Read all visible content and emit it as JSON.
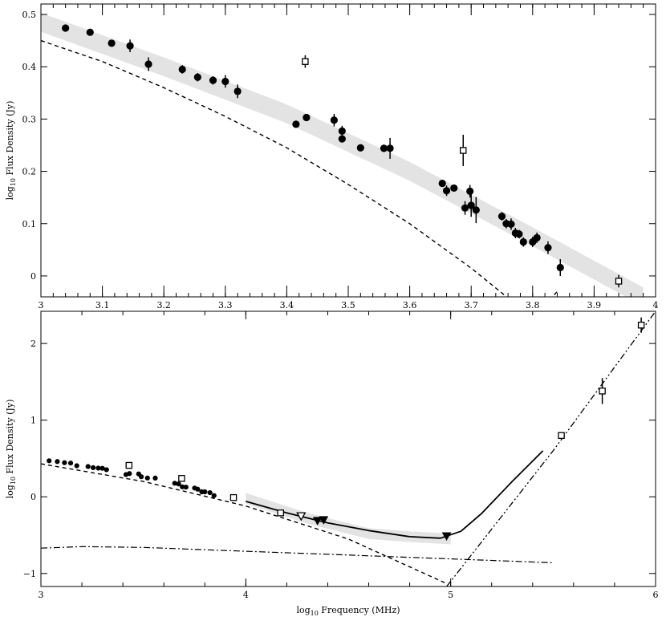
{
  "chart_data": [
    {
      "type": "scatter",
      "xlabel": "",
      "ylabel": "log10 Flux Density (Jy)",
      "ylabel_main": "log",
      "ylabel_sub": "10",
      "ylabel_rest": " Flux Density (Jy)",
      "xlim": [
        3.0,
        4.0
      ],
      "ylim": [
        -0.04,
        0.52
      ],
      "xticks": [
        3,
        3.1,
        3.2,
        3.3,
        3.4,
        3.5,
        3.6,
        3.7,
        3.8,
        3.9,
        4
      ],
      "xtick_labels": [
        "3",
        "3.1",
        "3.2",
        "3.3",
        "3.4",
        "3.5",
        "3.6",
        "3.7",
        "3.8",
        "3.9",
        "4"
      ],
      "yticks": [
        0,
        0.1,
        0.2,
        0.3,
        0.4,
        0.5
      ],
      "ytick_labels": [
        "0",
        "0.1",
        "0.2",
        "0.3",
        "0.4",
        "0.5"
      ],
      "series": [
        {
          "marker": "filled-circle",
          "points": [
            {
              "x": 3.04,
              "y": 0.474,
              "err": 0.0
            },
            {
              "x": 3.08,
              "y": 0.466,
              "err": 0.0
            },
            {
              "x": 3.115,
              "y": 0.445,
              "err": 0.0
            },
            {
              "x": 3.145,
              "y": 0.44,
              "err": 0.012
            },
            {
              "x": 3.175,
              "y": 0.405,
              "err": 0.013
            },
            {
              "x": 3.23,
              "y": 0.395,
              "err": 0.008
            },
            {
              "x": 3.255,
              "y": 0.38,
              "err": 0.008
            },
            {
              "x": 3.28,
              "y": 0.374,
              "err": 0.008
            },
            {
              "x": 3.3,
              "y": 0.372,
              "err": 0.012
            },
            {
              "x": 3.32,
              "y": 0.353,
              "err": 0.013
            },
            {
              "x": 3.415,
              "y": 0.29,
              "err": 0.0
            },
            {
              "x": 3.432,
              "y": 0.303,
              "err": 0.0
            },
            {
              "x": 3.477,
              "y": 0.298,
              "err": 0.012
            },
            {
              "x": 3.49,
              "y": 0.277,
              "err": 0.01
            },
            {
              "x": 3.49,
              "y": 0.262,
              "err": 0.0
            },
            {
              "x": 3.52,
              "y": 0.245,
              "err": 0.0
            },
            {
              "x": 3.558,
              "y": 0.244,
              "err": 0.007
            },
            {
              "x": 3.568,
              "y": 0.244,
              "err": 0.02
            },
            {
              "x": 3.653,
              "y": 0.177,
              "err": 0.0
            },
            {
              "x": 3.66,
              "y": 0.163,
              "err": 0.01
            },
            {
              "x": 3.672,
              "y": 0.168,
              "err": 0.006
            },
            {
              "x": 3.69,
              "y": 0.13,
              "err": 0.013
            },
            {
              "x": 3.698,
              "y": 0.162,
              "err": 0.012
            },
            {
              "x": 3.7,
              "y": 0.135,
              "err": 0.022
            },
            {
              "x": 3.708,
              "y": 0.126,
              "err": 0.025
            },
            {
              "x": 3.75,
              "y": 0.114,
              "err": 0.008
            },
            {
              "x": 3.757,
              "y": 0.1,
              "err": 0.009
            },
            {
              "x": 3.765,
              "y": 0.099,
              "err": 0.011
            },
            {
              "x": 3.772,
              "y": 0.082,
              "err": 0.01
            },
            {
              "x": 3.778,
              "y": 0.08,
              "err": 0.008
            },
            {
              "x": 3.785,
              "y": 0.065,
              "err": 0.009
            },
            {
              "x": 3.8,
              "y": 0.065,
              "err": 0.01
            },
            {
              "x": 3.807,
              "y": 0.073,
              "err": 0.01
            },
            {
              "x": 3.825,
              "y": 0.054,
              "err": 0.012
            },
            {
              "x": 3.845,
              "y": 0.016,
              "err": 0.016
            }
          ]
        },
        {
          "marker": "open-square",
          "points": [
            {
              "x": 3.43,
              "y": 0.41,
              "err": 0.012
            },
            {
              "x": 3.687,
              "y": 0.24,
              "err": 0.03
            },
            {
              "x": 3.94,
              "y": -0.01,
              "err": 0.012
            }
          ]
        }
      ],
      "band": {
        "x": [
          3.0,
          3.2,
          3.4,
          3.6,
          3.8,
          3.98
        ],
        "y": [
          0.485,
          0.4,
          0.31,
          0.2,
          0.075,
          -0.04
        ],
        "halfwidth": 0.018
      },
      "dashed_model": {
        "x": [
          3.0,
          3.1,
          3.2,
          3.3,
          3.4,
          3.5,
          3.6,
          3.7,
          3.8,
          3.84
        ],
        "y": [
          0.45,
          0.41,
          0.36,
          0.305,
          0.245,
          0.175,
          0.1,
          0.015,
          -0.08,
          -0.03
        ]
      }
    },
    {
      "type": "scatter",
      "xlabel": "log10 Frequency (MHz)",
      "xlabel_main": "log",
      "xlabel_sub": "10",
      "xlabel_rest": " Frequency (MHz)",
      "ylabel": "log10 Flux Density (Jy)",
      "ylabel_main": "log",
      "ylabel_sub": "10",
      "ylabel_rest": " Flux Density (Jy)",
      "xlim": [
        3.0,
        6.0
      ],
      "ylim": [
        -1.17,
        2.42
      ],
      "xticks": [
        3,
        4,
        5,
        6
      ],
      "xtick_labels": [
        "3",
        "4",
        "5",
        "6"
      ],
      "yticks": [
        -1,
        0,
        1,
        2
      ],
      "ytick_labels": [
        "−1",
        "0",
        "1",
        "2"
      ],
      "series": [
        {
          "marker": "filled-circle-small",
          "points": [
            {
              "x": 3.04,
              "y": 0.47
            },
            {
              "x": 3.08,
              "y": 0.46
            },
            {
              "x": 3.115,
              "y": 0.445
            },
            {
              "x": 3.145,
              "y": 0.44
            },
            {
              "x": 3.175,
              "y": 0.405
            },
            {
              "x": 3.23,
              "y": 0.395
            },
            {
              "x": 3.255,
              "y": 0.38
            },
            {
              "x": 3.28,
              "y": 0.374
            },
            {
              "x": 3.3,
              "y": 0.372
            },
            {
              "x": 3.32,
              "y": 0.353
            },
            {
              "x": 3.415,
              "y": 0.29
            },
            {
              "x": 3.432,
              "y": 0.303
            },
            {
              "x": 3.477,
              "y": 0.298
            },
            {
              "x": 3.49,
              "y": 0.262
            },
            {
              "x": 3.52,
              "y": 0.245
            },
            {
              "x": 3.558,
              "y": 0.244
            },
            {
              "x": 3.653,
              "y": 0.177
            },
            {
              "x": 3.672,
              "y": 0.168
            },
            {
              "x": 3.69,
              "y": 0.13
            },
            {
              "x": 3.708,
              "y": 0.126
            },
            {
              "x": 3.75,
              "y": 0.114
            },
            {
              "x": 3.765,
              "y": 0.099
            },
            {
              "x": 3.785,
              "y": 0.065
            },
            {
              "x": 3.8,
              "y": 0.065
            },
            {
              "x": 3.825,
              "y": 0.054
            },
            {
              "x": 3.845,
              "y": 0.016
            }
          ]
        },
        {
          "marker": "open-square",
          "points": [
            {
              "x": 3.43,
              "y": 0.41,
              "err": 0.0
            },
            {
              "x": 3.687,
              "y": 0.24,
              "err": 0.0
            },
            {
              "x": 3.94,
              "y": -0.01,
              "err": 0.0
            },
            {
              "x": 4.17,
              "y": -0.21,
              "err": 0.0
            },
            {
              "x": 5.54,
              "y": 0.8,
              "err": 0.0
            },
            {
              "x": 5.74,
              "y": 1.38,
              "err": 0.17
            },
            {
              "x": 5.93,
              "y": 2.24,
              "err": 0.1
            }
          ]
        },
        {
          "marker": "open-triangle-down",
          "points": [
            {
              "x": 4.27,
              "y": -0.25
            }
          ]
        },
        {
          "marker": "filled-triangle-down",
          "points": [
            {
              "x": 4.35,
              "y": -0.31
            },
            {
              "x": 4.38,
              "y": -0.3
            },
            {
              "x": 4.98,
              "y": -0.51
            }
          ]
        }
      ],
      "band": {
        "x": [
          4.0,
          4.3,
          4.6,
          4.8,
          5.0
        ],
        "y": [
          -0.02,
          -0.28,
          -0.48,
          -0.52,
          -0.55
        ],
        "halfwidth": 0.07
      },
      "solid_model": {
        "x": [
          4.0,
          4.2,
          4.4,
          4.6,
          4.8,
          4.95,
          5.05,
          5.15,
          5.3,
          5.45
        ],
        "y": [
          -0.06,
          -0.21,
          -0.34,
          -0.44,
          -0.52,
          -0.54,
          -0.45,
          -0.22,
          0.2,
          0.6
        ]
      },
      "dashed_model": {
        "x": [
          3.0,
          3.5,
          4.0,
          4.5,
          4.97
        ],
        "y": [
          0.43,
          0.2,
          -0.12,
          -0.55,
          -1.12
        ]
      },
      "dashdot_model": {
        "x": [
          3.0,
          3.2,
          3.5,
          4.0,
          4.5,
          5.0,
          5.5
        ],
        "y": [
          -0.67,
          -0.65,
          -0.66,
          -0.71,
          -0.76,
          -0.81,
          -0.86
        ]
      },
      "dashdotdot_model": {
        "x": [
          4.98,
          5.5,
          6.0
        ],
        "y": [
          -1.17,
          0.6,
          2.42
        ]
      }
    }
  ]
}
